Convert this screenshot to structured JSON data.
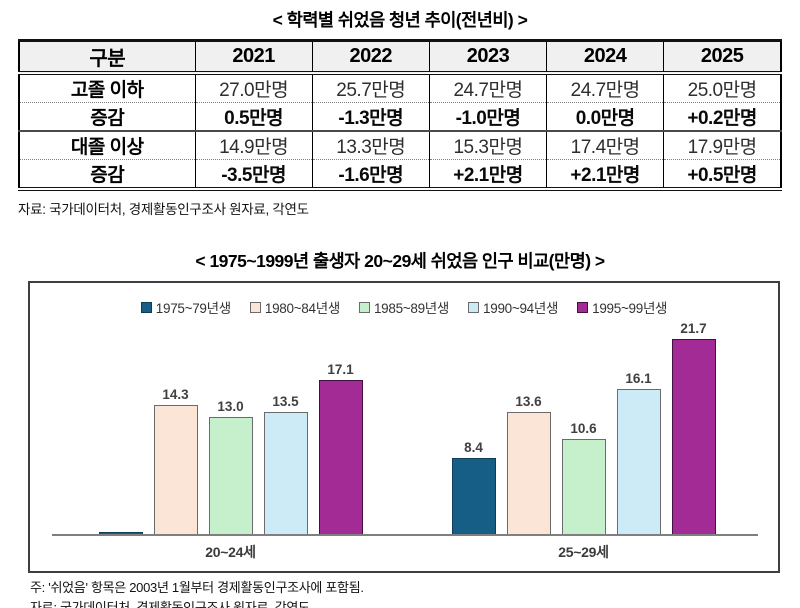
{
  "table_section": {
    "title": "< 학력별 쉬었음 청년 추이(전년비) >",
    "table": {
      "columns": [
        "구분",
        "2021",
        "2022",
        "2023",
        "2024",
        "2025"
      ],
      "rows": [
        {
          "label": "고졸 이하",
          "values": [
            "27.0만명",
            "25.7만명",
            "24.7만명",
            "24.7만명",
            "25.0만명"
          ]
        },
        {
          "label": "증감",
          "values": [
            "0.5만명",
            "-1.3만명",
            "-1.0만명",
            "0.0만명",
            "+0.2만명"
          ]
        },
        {
          "label": "대졸 이상",
          "values": [
            "14.9만명",
            "13.3만명",
            "15.3만명",
            "17.4만명",
            "17.9만명"
          ]
        },
        {
          "label": "증감",
          "values": [
            "-3.5만명",
            "-1.6만명",
            "+2.1만명",
            "+2.1만명",
            "+0.5만명"
          ]
        }
      ],
      "highlight_color": "#0000f0"
    },
    "source": "자료: 국가데이터처, 경제활동인구조사 원자료, 각연도"
  },
  "chart_section": {
    "title": "< 1975~1999년 출생자 20~29세 쉬었음 인구 비교(만명) >",
    "note": "주: '쉬었음' 항목은 2003년 1월부터 경제활동인구조사에 포함됨.",
    "source": "자료: 국가데이터처, 경제활동인구조사 원자료, 각연도"
  },
  "chart_data": {
    "type": "bar",
    "title": "< 1975~1999년 출생자 20~29세 쉬었음 인구 비교(만명) >",
    "categories": [
      "20~24세",
      "25~29세"
    ],
    "series": [
      {
        "name": "1975~79년생",
        "color": "#175e86",
        "border": "#0c3d59",
        "values": [
          0.0,
          8.4
        ],
        "labels": [
          "",
          "8.4"
        ]
      },
      {
        "name": "1980~84년생",
        "color": "#fae5d6",
        "border": "#6b6b6b",
        "values": [
          14.3,
          13.6
        ],
        "labels": [
          "14.3",
          "13.6"
        ]
      },
      {
        "name": "1985~89년생",
        "color": "#c5f0cb",
        "border": "#6b6b6b",
        "values": [
          13.0,
          10.6
        ],
        "labels": [
          "13.0",
          "10.6"
        ]
      },
      {
        "name": "1990~94년생",
        "color": "#cdebf7",
        "border": "#6b6b6b",
        "values": [
          13.5,
          16.1
        ],
        "labels": [
          "13.5",
          "16.1"
        ]
      },
      {
        "name": "1995~99년생",
        "color": "#a22b96",
        "border": "#431040",
        "values": [
          17.1,
          21.7
        ],
        "labels": [
          "17.1",
          "21.7"
        ]
      }
    ],
    "ylim": [
      0,
      24
    ],
    "grid": false,
    "legend_position": "top",
    "data_labels": true,
    "unit": "만명"
  }
}
